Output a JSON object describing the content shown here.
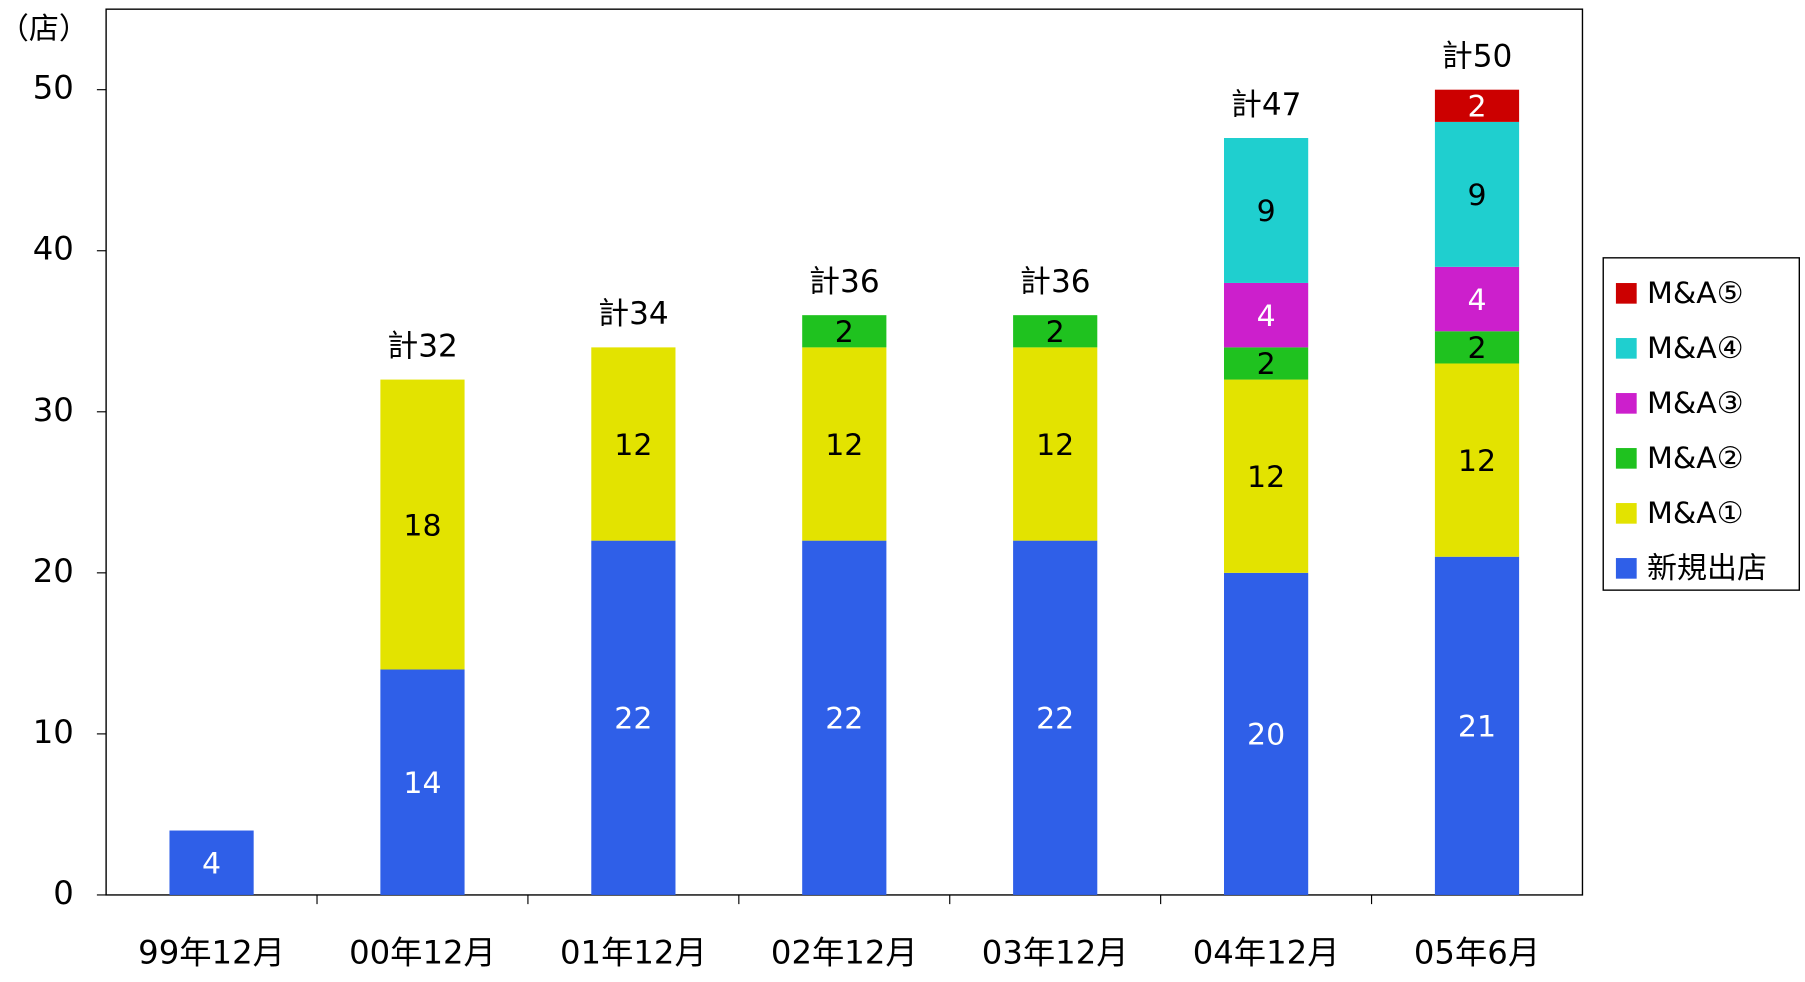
{
  "chart_data": {
    "type": "stacked_bar",
    "y_label": "（店）",
    "categories": [
      "99年12月",
      "00年12月",
      "01年12月",
      "02年12月",
      "03年12月",
      "04年12月",
      "05年6月"
    ],
    "series": [
      {
        "name": "新規出店",
        "color": "#2f5fe8",
        "values": [
          4,
          14,
          22,
          22,
          22,
          20,
          21
        ]
      },
      {
        "name": "M&A①",
        "color": "#e3e300",
        "values": [
          null,
          18,
          12,
          12,
          12,
          12,
          12
        ]
      },
      {
        "name": "M&A②",
        "color": "#1fc21f",
        "values": [
          null,
          null,
          null,
          2,
          2,
          2,
          2
        ]
      },
      {
        "name": "M&A③",
        "color": "#cc1fcc",
        "values": [
          null,
          null,
          null,
          null,
          null,
          4,
          4
        ]
      },
      {
        "name": "M&A④",
        "color": "#1fcfcf",
        "values": [
          null,
          null,
          null,
          null,
          null,
          9,
          9
        ]
      },
      {
        "name": "M&A⑤",
        "color": "#cc0000",
        "values": [
          null,
          null,
          null,
          null,
          null,
          null,
          2
        ]
      }
    ],
    "total_labels": [
      null,
      "計32",
      "計34",
      "計36",
      "計36",
      "計47",
      "計50"
    ],
    "ylim": [
      0,
      55
    ],
    "yticks": [
      0,
      10,
      20,
      30,
      40,
      50
    ],
    "legend": "right"
  }
}
